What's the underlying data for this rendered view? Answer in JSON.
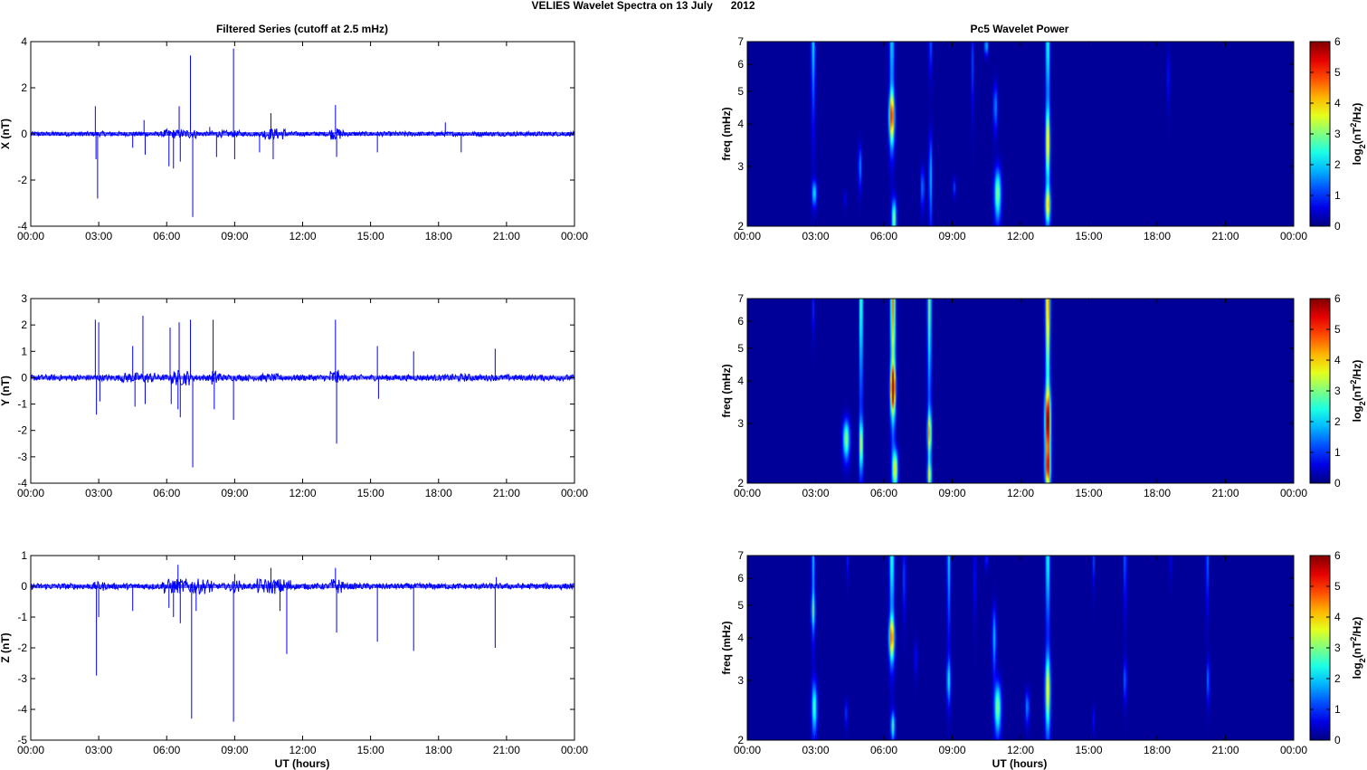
{
  "figure": {
    "suptitle": "VELIES Wavelet Spectra on 13 July      2012",
    "left_title": "Filtered Series (cutoff at 2.5 mHz)",
    "right_title": "Pc5 Wavelet Power",
    "xlabel": "UT (hours)"
  },
  "chart_data": [
    {
      "type": "line",
      "panel": "X",
      "ylabel": "X (nT)",
      "xlim": [
        0,
        24
      ],
      "ylim": [
        -4,
        4
      ],
      "xticks": [
        "00:00",
        "03:00",
        "06:00",
        "09:00",
        "12:00",
        "15:00",
        "18:00",
        "21:00",
        "00:00"
      ],
      "yticks": [
        -4,
        -2,
        0,
        2,
        4
      ],
      "line_color": "#0000ff",
      "baseline_amplitude": 0.1,
      "bursts": [
        [
          2.9,
          3.2,
          0.12
        ],
        [
          5.8,
          7.4,
          0.2
        ],
        [
          8.0,
          9.2,
          0.15
        ],
        [
          10.2,
          11.3,
          0.25
        ],
        [
          13.2,
          13.8,
          0.25
        ]
      ],
      "spikes": [
        [
          2.85,
          1.2
        ],
        [
          2.95,
          -2.8
        ],
        [
          2.88,
          -1.1
        ],
        [
          4.5,
          -0.6
        ],
        [
          5.0,
          0.6
        ],
        [
          5.05,
          -0.9
        ],
        [
          6.1,
          -1.4
        ],
        [
          6.3,
          -1.5
        ],
        [
          6.55,
          1.2
        ],
        [
          6.6,
          -1.2
        ],
        [
          7.05,
          3.4
        ],
        [
          7.15,
          -3.6
        ],
        [
          7.9,
          0.3
        ],
        [
          8.2,
          -1.0
        ],
        [
          8.95,
          3.7
        ],
        [
          9.0,
          -1.1
        ],
        [
          10.1,
          -0.8
        ],
        [
          10.6,
          0.9
        ],
        [
          10.7,
          -1.1
        ],
        [
          13.45,
          1.25
        ],
        [
          13.5,
          -1.0
        ],
        [
          15.3,
          -0.8
        ],
        [
          19.0,
          -0.8
        ],
        [
          18.3,
          0.5
        ]
      ]
    },
    {
      "type": "line",
      "panel": "Y",
      "ylabel": "Y (nT)",
      "xlim": [
        0,
        24
      ],
      "ylim": [
        -4,
        3
      ],
      "xticks": [
        "00:00",
        "03:00",
        "06:00",
        "09:00",
        "12:00",
        "15:00",
        "18:00",
        "21:00",
        "00:00"
      ],
      "yticks": [
        -4,
        -3,
        -2,
        -1,
        0,
        1,
        2,
        3
      ],
      "line_color": "#0000ff",
      "baseline_amplitude": 0.12,
      "bursts": [
        [
          4.0,
          5.5,
          0.2
        ],
        [
          6.2,
          7.0,
          0.3
        ],
        [
          8.0,
          8.4,
          0.3
        ],
        [
          10.0,
          11.0,
          0.15
        ],
        [
          13.2,
          13.6,
          0.3
        ],
        [
          18.5,
          19.5,
          0.15
        ]
      ],
      "spikes": [
        [
          2.85,
          2.2
        ],
        [
          2.9,
          -1.4
        ],
        [
          3.0,
          2.1
        ],
        [
          3.05,
          -0.9
        ],
        [
          4.5,
          1.2
        ],
        [
          4.6,
          -1.1
        ],
        [
          4.95,
          2.35
        ],
        [
          5.05,
          -1.0
        ],
        [
          6.15,
          1.9
        ],
        [
          6.2,
          -1.0
        ],
        [
          6.5,
          -1.2
        ],
        [
          6.55,
          2.1
        ],
        [
          6.6,
          -1.5
        ],
        [
          7.05,
          2.2
        ],
        [
          7.15,
          -3.4
        ],
        [
          8.05,
          2.2
        ],
        [
          8.1,
          -1.2
        ],
        [
          8.95,
          -1.6
        ],
        [
          13.45,
          2.2
        ],
        [
          13.5,
          -2.5
        ],
        [
          15.3,
          1.2
        ],
        [
          15.35,
          -0.8
        ],
        [
          16.9,
          1.0
        ],
        [
          20.5,
          1.1
        ]
      ]
    },
    {
      "type": "line",
      "panel": "Z",
      "ylabel": "Z (nT)",
      "xlim": [
        0,
        24
      ],
      "ylim": [
        -5,
        1
      ],
      "xticks": [
        "00:00",
        "03:00",
        "06:00",
        "09:00",
        "12:00",
        "15:00",
        "18:00",
        "21:00",
        "00:00"
      ],
      "yticks": [
        -5,
        -4,
        -3,
        -2,
        -1,
        0,
        1
      ],
      "line_color": "#0000ff",
      "baseline_amplitude": 0.1,
      "bursts": [
        [
          2.8,
          3.3,
          0.15
        ],
        [
          5.8,
          8.0,
          0.25
        ],
        [
          8.8,
          9.2,
          0.2
        ],
        [
          10.0,
          11.5,
          0.25
        ],
        [
          13.2,
          13.8,
          0.25
        ]
      ],
      "spikes": [
        [
          2.9,
          -2.9
        ],
        [
          3.0,
          -1.0
        ],
        [
          4.5,
          -0.8
        ],
        [
          6.1,
          -0.7
        ],
        [
          6.3,
          -1.0
        ],
        [
          6.5,
          0.7
        ],
        [
          6.6,
          -1.2
        ],
        [
          7.1,
          -4.3
        ],
        [
          7.3,
          -0.8
        ],
        [
          8.95,
          -4.4
        ],
        [
          9.0,
          0.4
        ],
        [
          10.6,
          0.6
        ],
        [
          11.3,
          -2.2
        ],
        [
          11.0,
          -0.8
        ],
        [
          13.45,
          0.6
        ],
        [
          13.5,
          -1.5
        ],
        [
          15.3,
          -1.8
        ],
        [
          16.9,
          -2.1
        ],
        [
          20.5,
          -2.0
        ],
        [
          20.55,
          0.3
        ]
      ]
    },
    {
      "type": "heatmap",
      "panel": "X",
      "ylabel": "freq (mHz)",
      "xlim": [
        0,
        24
      ],
      "ylim": [
        2,
        7
      ],
      "yscale": "log",
      "yticks": [
        2,
        3,
        4,
        5,
        6,
        7
      ],
      "xticks": [
        "00:00",
        "03:00",
        "06:00",
        "09:00",
        "12:00",
        "15:00",
        "18:00",
        "21:00",
        "00:00"
      ],
      "colorbar": {
        "label": "log2(nT2/Hz)",
        "range": [
          0,
          6
        ],
        "ticks": [
          0,
          1,
          2,
          3,
          4,
          5,
          6
        ],
        "colormap": "jet"
      },
      "features": [
        [
          2.9,
          7.0,
          2.0,
          0.06,
          2.0
        ],
        [
          2.95,
          2.5,
          0.15,
          0.07,
          2.0
        ],
        [
          4.3,
          2.4,
          0.1,
          0.04,
          0.6
        ],
        [
          4.95,
          3.0,
          0.3,
          0.05,
          1.5
        ],
        [
          6.35,
          7.0,
          2.0,
          0.07,
          2.0
        ],
        [
          6.35,
          4.2,
          0.5,
          0.08,
          4.5
        ],
        [
          6.45,
          2.1,
          0.2,
          0.07,
          3.0
        ],
        [
          7.7,
          2.6,
          0.25,
          0.05,
          1.5
        ],
        [
          8.05,
          2.8,
          0.6,
          0.05,
          1.8
        ],
        [
          8.05,
          7.0,
          1.0,
          0.05,
          1.2
        ],
        [
          9.1,
          2.6,
          0.12,
          0.04,
          1.0
        ],
        [
          9.9,
          6.0,
          1.2,
          0.04,
          1.0
        ],
        [
          10.5,
          6.8,
          0.3,
          0.05,
          2.0
        ],
        [
          10.9,
          4.5,
          0.5,
          0.06,
          1.5
        ],
        [
          11.0,
          2.5,
          0.3,
          0.1,
          3.0
        ],
        [
          13.2,
          7.0,
          2.0,
          0.06,
          2.5
        ],
        [
          13.2,
          3.5,
          0.6,
          0.07,
          3.5
        ],
        [
          13.2,
          2.3,
          0.2,
          0.08,
          3.5
        ],
        [
          18.5,
          5.5,
          0.7,
          0.04,
          0.8
        ]
      ]
    },
    {
      "type": "heatmap",
      "panel": "Y",
      "ylabel": "freq (mHz)",
      "xlim": [
        0,
        24
      ],
      "ylim": [
        2,
        7
      ],
      "yscale": "log",
      "yticks": [
        2,
        3,
        4,
        5,
        6,
        7
      ],
      "xticks": [
        "00:00",
        "03:00",
        "06:00",
        "09:00",
        "12:00",
        "15:00",
        "18:00",
        "21:00",
        "00:00"
      ],
      "colorbar": {
        "label": "log2(nT2/Hz)",
        "range": [
          0,
          6
        ],
        "ticks": [
          0,
          1,
          2,
          3,
          4,
          5,
          6
        ],
        "colormap": "jet"
      },
      "features": [
        [
          2.9,
          6.5,
          0.8,
          0.04,
          0.8
        ],
        [
          4.35,
          2.7,
          0.25,
          0.1,
          3.0
        ],
        [
          5.0,
          7.0,
          2.5,
          0.05,
          3.0
        ],
        [
          5.0,
          2.6,
          0.3,
          0.06,
          3.0
        ],
        [
          6.4,
          7.0,
          2.5,
          0.07,
          4.5
        ],
        [
          6.4,
          3.8,
          0.4,
          0.08,
          5.0
        ],
        [
          6.5,
          2.2,
          0.2,
          0.08,
          3.5
        ],
        [
          8.0,
          7.0,
          2.5,
          0.06,
          3.0
        ],
        [
          8.0,
          2.8,
          0.3,
          0.06,
          3.5
        ],
        [
          8.0,
          2.1,
          0.15,
          0.06,
          3.0
        ],
        [
          13.2,
          7.0,
          2.5,
          0.07,
          4.5
        ],
        [
          13.2,
          3.0,
          0.5,
          0.09,
          5.0
        ],
        [
          13.2,
          2.2,
          0.2,
          0.08,
          3.5
        ]
      ]
    },
    {
      "type": "heatmap",
      "panel": "Z",
      "ylabel": "freq (mHz)",
      "xlim": [
        0,
        24
      ],
      "ylim": [
        2,
        7
      ],
      "yscale": "log",
      "yticks": [
        2,
        3,
        4,
        5,
        6,
        7
      ],
      "xticks": [
        "00:00",
        "03:00",
        "06:00",
        "09:00",
        "12:00",
        "15:00",
        "18:00",
        "21:00",
        "00:00"
      ],
      "colorbar": {
        "label": "log2(nT2/Hz)",
        "range": [
          0,
          6
        ],
        "ticks": [
          0,
          1,
          2,
          3,
          4,
          5,
          6
        ],
        "colormap": "jet"
      },
      "features": [
        [
          2.9,
          7.0,
          2.0,
          0.05,
          1.8
        ],
        [
          2.9,
          4.8,
          0.4,
          0.06,
          1.8
        ],
        [
          2.95,
          2.5,
          0.3,
          0.08,
          2.5
        ],
        [
          4.35,
          2.4,
          0.15,
          0.04,
          1.0
        ],
        [
          4.4,
          6.8,
          0.6,
          0.03,
          0.8
        ],
        [
          6.35,
          7.0,
          2.0,
          0.07,
          2.5
        ],
        [
          6.35,
          4.0,
          0.4,
          0.08,
          4.0
        ],
        [
          6.4,
          2.2,
          0.15,
          0.06,
          2.5
        ],
        [
          6.9,
          6.0,
          1.0,
          0.04,
          1.2
        ],
        [
          7.4,
          3.5,
          0.3,
          0.04,
          0.8
        ],
        [
          8.85,
          7.0,
          2.0,
          0.05,
          2.0
        ],
        [
          8.85,
          3.0,
          0.3,
          0.06,
          2.0
        ],
        [
          10.0,
          6.0,
          1.0,
          0.04,
          0.8
        ],
        [
          10.5,
          6.8,
          0.3,
          0.04,
          1.0
        ],
        [
          10.85,
          4.0,
          0.6,
          0.06,
          1.8
        ],
        [
          11.0,
          2.5,
          0.3,
          0.1,
          3.0
        ],
        [
          12.3,
          2.5,
          0.2,
          0.06,
          1.5
        ],
        [
          13.2,
          7.0,
          2.0,
          0.06,
          2.5
        ],
        [
          13.2,
          2.8,
          0.5,
          0.08,
          3.5
        ],
        [
          15.2,
          6.8,
          0.8,
          0.03,
          1.2
        ],
        [
          15.2,
          2.3,
          0.15,
          0.03,
          0.8
        ],
        [
          16.6,
          7.0,
          1.5,
          0.04,
          1.5
        ],
        [
          16.6,
          3.0,
          0.3,
          0.04,
          1.5
        ],
        [
          18.6,
          6.8,
          0.6,
          0.03,
          0.8
        ],
        [
          20.2,
          7.0,
          1.5,
          0.04,
          1.5
        ],
        [
          20.25,
          3.0,
          0.3,
          0.04,
          1.5
        ]
      ]
    }
  ]
}
